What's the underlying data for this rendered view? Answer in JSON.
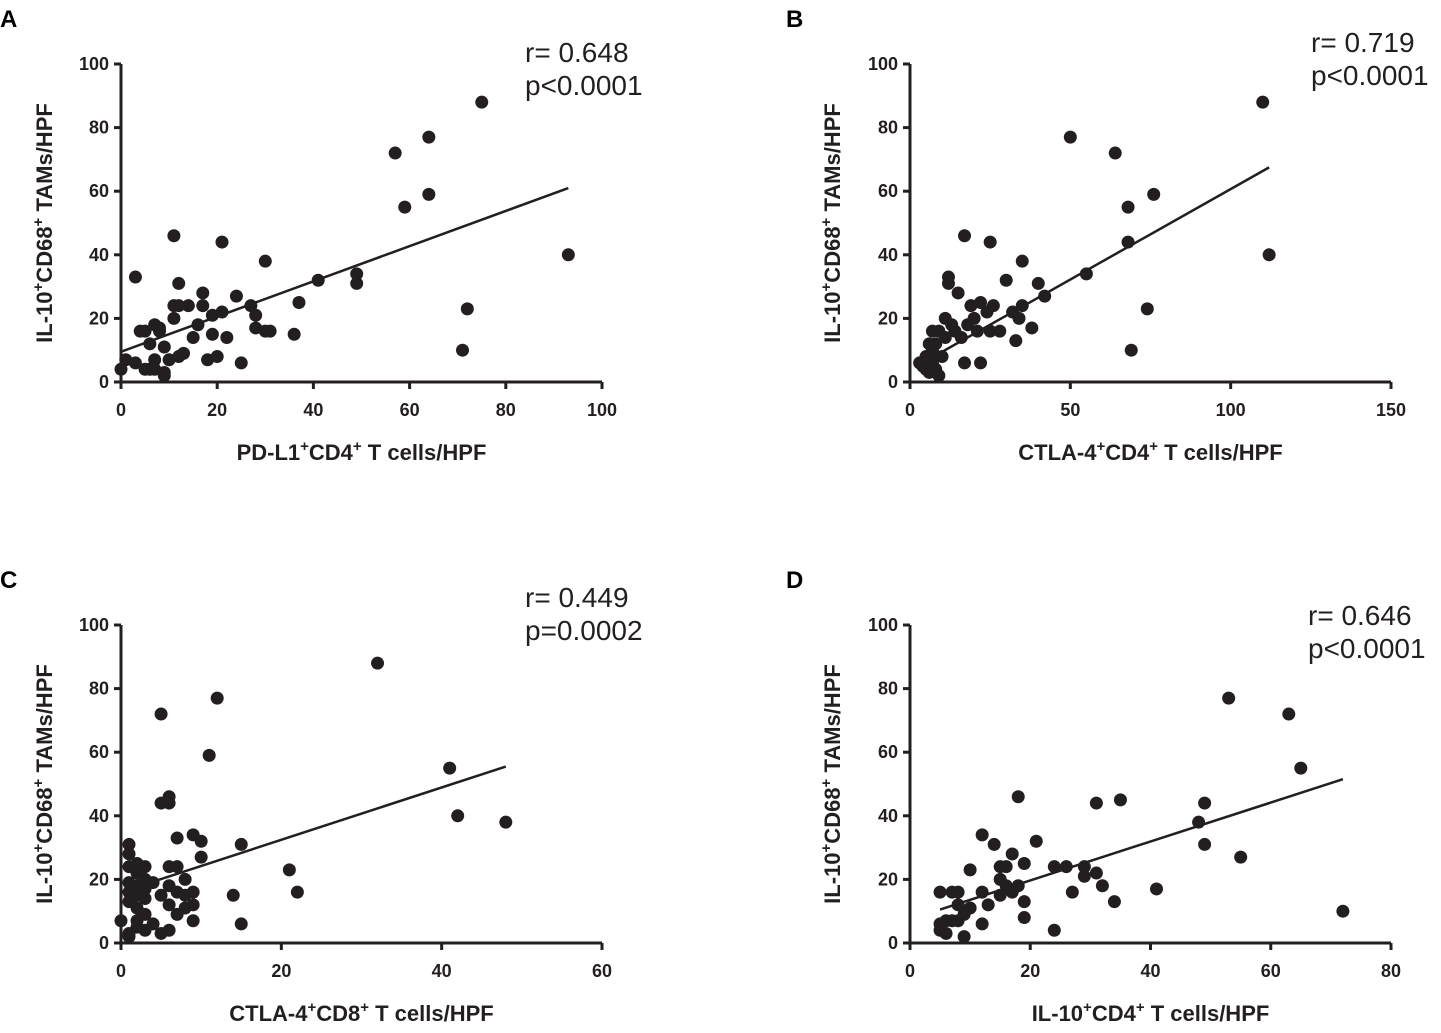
{
  "colors": {
    "ink": "#231f20",
    "background": "#ffffff"
  },
  "chart_data": [
    {
      "panel": "A",
      "type": "scatter",
      "xlabel": {
        "base": "PD-L1",
        "sup1": "+",
        "mid": "CD4",
        "sup2": "+",
        "rest": " T cells/HPF"
      },
      "ylabel": {
        "base": "IL-10",
        "sup1": "+",
        "mid": "CD68",
        "sup2": "+",
        "rest": " TAMs/HPF"
      },
      "xlim": [
        0,
        100
      ],
      "xticks": [
        0,
        20,
        40,
        60,
        80,
        100
      ],
      "ylim": [
        0,
        100
      ],
      "yticks": [
        0,
        20,
        40,
        60,
        80,
        100
      ],
      "stats": [
        "r= 0.648",
        "p<0.0001"
      ],
      "regression": {
        "x": [
          0,
          93
        ],
        "y": [
          9.5,
          61
        ]
      },
      "points": [
        [
          0,
          4
        ],
        [
          1,
          7
        ],
        [
          3,
          33
        ],
        [
          3,
          6
        ],
        [
          4,
          16
        ],
        [
          5,
          16
        ],
        [
          5,
          4
        ],
        [
          6,
          4
        ],
        [
          6,
          12
        ],
        [
          7,
          18
        ],
        [
          7,
          7
        ],
        [
          7,
          4
        ],
        [
          8,
          17
        ],
        [
          8,
          16
        ],
        [
          9,
          2
        ],
        [
          9,
          3
        ],
        [
          9,
          11
        ],
        [
          10,
          7
        ],
        [
          11,
          46
        ],
        [
          11,
          24
        ],
        [
          11,
          20
        ],
        [
          12,
          31
        ],
        [
          12,
          24
        ],
        [
          12,
          8
        ],
        [
          13,
          9
        ],
        [
          14,
          24
        ],
        [
          15,
          14
        ],
        [
          16,
          18
        ],
        [
          17,
          28
        ],
        [
          17,
          24
        ],
        [
          18,
          7
        ],
        [
          19,
          15
        ],
        [
          19,
          21
        ],
        [
          20,
          8
        ],
        [
          21,
          44
        ],
        [
          21,
          22
        ],
        [
          22,
          14
        ],
        [
          24,
          27
        ],
        [
          25,
          6
        ],
        [
          27,
          24
        ],
        [
          28,
          21
        ],
        [
          28,
          17
        ],
        [
          30,
          38
        ],
        [
          30,
          16
        ],
        [
          31,
          16
        ],
        [
          36,
          15
        ],
        [
          37,
          25
        ],
        [
          41,
          32
        ],
        [
          49,
          34
        ],
        [
          49,
          31
        ],
        [
          57,
          72
        ],
        [
          59,
          55
        ],
        [
          64,
          77
        ],
        [
          64,
          59
        ],
        [
          71,
          10
        ],
        [
          72,
          23
        ],
        [
          75,
          88
        ],
        [
          93,
          40
        ]
      ]
    },
    {
      "panel": "B",
      "type": "scatter",
      "xlabel": {
        "base": "CTLA-4",
        "sup1": "+",
        "mid": "CD4",
        "sup2": "+",
        "rest": " T cells/HPF"
      },
      "ylabel": {
        "base": "IL-10",
        "sup1": "+",
        "mid": "CD68",
        "sup2": "+",
        "rest": " TAMs/HPF"
      },
      "xlim": [
        0,
        150
      ],
      "xticks": [
        0,
        50,
        100,
        150
      ],
      "ylim": [
        0,
        100
      ],
      "yticks": [
        0,
        20,
        40,
        60,
        80,
        100
      ],
      "stats": [
        "r= 0.719",
        "p<0.0001"
      ],
      "regression": {
        "x": [
          3,
          112
        ],
        "y": [
          5.5,
          67.5
        ]
      },
      "points": [
        [
          3,
          6
        ],
        [
          4,
          5
        ],
        [
          5,
          8
        ],
        [
          5,
          4
        ],
        [
          6,
          12
        ],
        [
          6,
          8
        ],
        [
          6,
          3
        ],
        [
          7,
          16
        ],
        [
          7,
          10
        ],
        [
          7,
          6
        ],
        [
          8,
          12
        ],
        [
          8,
          4
        ],
        [
          9,
          2
        ],
        [
          9,
          16
        ],
        [
          10,
          8
        ],
        [
          11,
          20
        ],
        [
          11,
          14
        ],
        [
          12,
          33
        ],
        [
          12,
          31
        ],
        [
          13,
          18
        ],
        [
          14,
          16
        ],
        [
          15,
          28
        ],
        [
          16,
          14
        ],
        [
          17,
          46
        ],
        [
          17,
          6
        ],
        [
          18,
          18
        ],
        [
          19,
          24
        ],
        [
          20,
          20
        ],
        [
          21,
          16
        ],
        [
          22,
          25
        ],
        [
          22,
          6
        ],
        [
          24,
          22
        ],
        [
          25,
          44
        ],
        [
          25,
          16
        ],
        [
          26,
          24
        ],
        [
          28,
          16
        ],
        [
          30,
          32
        ],
        [
          32,
          22
        ],
        [
          33,
          13
        ],
        [
          34,
          20
        ],
        [
          35,
          38
        ],
        [
          35,
          24
        ],
        [
          38,
          17
        ],
        [
          40,
          31
        ],
        [
          42,
          27
        ],
        [
          50,
          77
        ],
        [
          55,
          34
        ],
        [
          64,
          72
        ],
        [
          68,
          55
        ],
        [
          68,
          44
        ],
        [
          69,
          10
        ],
        [
          74,
          23
        ],
        [
          76,
          59
        ],
        [
          110,
          88
        ],
        [
          112,
          40
        ]
      ]
    },
    {
      "panel": "C",
      "type": "scatter",
      "xlabel": {
        "base": "CTLA-4",
        "sup1": "+",
        "mid": "CD8",
        "sup2": "+",
        "rest": " T cells/HPF"
      },
      "ylabel": {
        "base": "IL-10",
        "sup1": "+",
        "mid": "CD68",
        "sup2": "+",
        "rest": " TAMs/HPF"
      },
      "xlim": [
        0,
        60
      ],
      "xticks": [
        0,
        20,
        40,
        60
      ],
      "ylim": [
        0,
        100
      ],
      "yticks": [
        0,
        20,
        40,
        60,
        80,
        100
      ],
      "stats": [
        "r= 0.449",
        "p=0.0002"
      ],
      "regression": {
        "x": [
          0,
          48
        ],
        "y": [
          16,
          55.5
        ]
      },
      "points": [
        [
          0,
          7
        ],
        [
          1,
          31
        ],
        [
          1,
          28
        ],
        [
          1,
          24
        ],
        [
          1,
          19
        ],
        [
          1,
          16
        ],
        [
          1,
          13
        ],
        [
          1,
          3
        ],
        [
          1,
          2
        ],
        [
          2,
          25
        ],
        [
          2,
          22
        ],
        [
          2,
          18
        ],
        [
          2,
          15
        ],
        [
          2,
          11
        ],
        [
          2,
          7
        ],
        [
          2,
          5
        ],
        [
          3,
          24
        ],
        [
          3,
          20
        ],
        [
          3,
          17
        ],
        [
          3,
          14
        ],
        [
          3,
          9
        ],
        [
          3,
          4
        ],
        [
          4,
          19
        ],
        [
          4,
          6
        ],
        [
          5,
          72
        ],
        [
          5,
          44
        ],
        [
          5,
          15
        ],
        [
          5,
          3
        ],
        [
          6,
          46
        ],
        [
          6,
          44
        ],
        [
          6,
          24
        ],
        [
          6,
          18
        ],
        [
          6,
          12
        ],
        [
          6,
          4
        ],
        [
          7,
          33
        ],
        [
          7,
          24
        ],
        [
          7,
          16
        ],
        [
          7,
          9
        ],
        [
          8,
          20
        ],
        [
          8,
          15
        ],
        [
          8,
          11
        ],
        [
          9,
          34
        ],
        [
          9,
          16
        ],
        [
          9,
          12
        ],
        [
          9,
          7
        ],
        [
          10,
          32
        ],
        [
          10,
          27
        ],
        [
          11,
          59
        ],
        [
          12,
          77
        ],
        [
          14,
          15
        ],
        [
          15,
          31
        ],
        [
          15,
          6
        ],
        [
          21,
          23
        ],
        [
          22,
          16
        ],
        [
          32,
          88
        ],
        [
          41,
          55
        ],
        [
          42,
          40
        ],
        [
          48,
          38
        ]
      ]
    },
    {
      "panel": "D",
      "type": "scatter",
      "xlabel": {
        "base": "IL-10",
        "sup1": "+",
        "mid": "CD4",
        "sup2": "+",
        "rest": " T cells/HPF"
      },
      "ylabel": {
        "base": "IL-10",
        "sup1": "+",
        "mid": "CD68",
        "sup2": "+",
        "rest": " TAMs/HPF"
      },
      "xlim": [
        0,
        80
      ],
      "xticks": [
        0,
        20,
        40,
        60,
        80
      ],
      "ylim": [
        0,
        100
      ],
      "yticks": [
        0,
        20,
        40,
        60,
        80,
        100
      ],
      "stats": [
        "r= 0.646",
        "p<0.0001"
      ],
      "regression": {
        "x": [
          5,
          72
        ],
        "y": [
          10.5,
          51.5
        ]
      },
      "points": [
        [
          5,
          16
        ],
        [
          5,
          6
        ],
        [
          5,
          4
        ],
        [
          6,
          7
        ],
        [
          6,
          3
        ],
        [
          7,
          16
        ],
        [
          7,
          7
        ],
        [
          8,
          16
        ],
        [
          8,
          12
        ],
        [
          8,
          7
        ],
        [
          9,
          2
        ],
        [
          9,
          9
        ],
        [
          10,
          11
        ],
        [
          10,
          23
        ],
        [
          12,
          34
        ],
        [
          12,
          16
        ],
        [
          12,
          6
        ],
        [
          13,
          12
        ],
        [
          14,
          31
        ],
        [
          15,
          20
        ],
        [
          15,
          24
        ],
        [
          15,
          15
        ],
        [
          16,
          24
        ],
        [
          16,
          18
        ],
        [
          17,
          28
        ],
        [
          17,
          16
        ],
        [
          18,
          46
        ],
        [
          18,
          18
        ],
        [
          19,
          25
        ],
        [
          19,
          13
        ],
        [
          19,
          8
        ],
        [
          21,
          32
        ],
        [
          24,
          24
        ],
        [
          24,
          4
        ],
        [
          26,
          24
        ],
        [
          27,
          16
        ],
        [
          29,
          24
        ],
        [
          29,
          21
        ],
        [
          31,
          44
        ],
        [
          31,
          22
        ],
        [
          32,
          18
        ],
        [
          34,
          13
        ],
        [
          35,
          45
        ],
        [
          41,
          17
        ],
        [
          48,
          38
        ],
        [
          49,
          44
        ],
        [
          49,
          31
        ],
        [
          53,
          77
        ],
        [
          55,
          27
        ],
        [
          63,
          72
        ],
        [
          65,
          55
        ],
        [
          72,
          10
        ]
      ]
    }
  ]
}
